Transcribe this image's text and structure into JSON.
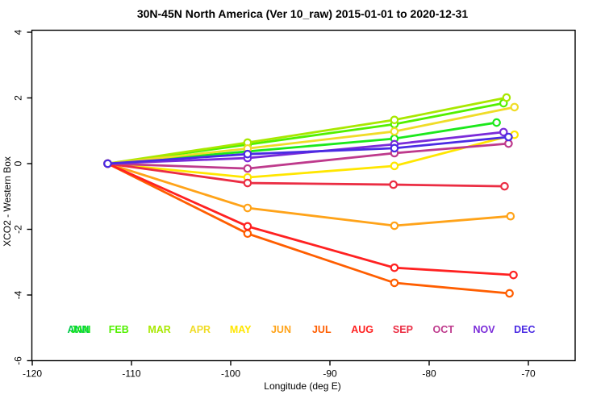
{
  "chart_data": {
    "type": "line",
    "title": "30N-45N North America (Ver 10_raw)   2015-01-01 to 2020-12-31",
    "xlabel": "Longitude (deg E)",
    "ylabel": "XCO2 - Western Box",
    "xlim": [
      -120.4,
      -65.3
    ],
    "ylim": [
      -6,
      4.1
    ],
    "x_ticks": [
      -120,
      -110,
      -100,
      -90,
      -80,
      -70
    ],
    "y_ticks": [
      4,
      2,
      0,
      -2,
      -4,
      -6
    ],
    "grid": false,
    "legend_position": "inside-bottom",
    "marker": "open-circle",
    "legend": [
      {
        "label": "ANN",
        "color": "#00c94a"
      },
      {
        "label": "JAN",
        "color": "#1ce81c"
      },
      {
        "label": "FEB",
        "color": "#52f000"
      },
      {
        "label": "MAR",
        "color": "#a8e800"
      },
      {
        "label": "APR",
        "color": "#f0dc28"
      },
      {
        "label": "MAY",
        "color": "#ffe600"
      },
      {
        "label": "JUN",
        "color": "#ffa319"
      },
      {
        "label": "JUL",
        "color": "#ff5e00"
      },
      {
        "label": "AUG",
        "color": "#ff2121"
      },
      {
        "label": "SEP",
        "color": "#eb2d43"
      },
      {
        "label": "OCT",
        "color": "#be3a8c"
      },
      {
        "label": "NOV",
        "color": "#7a2bd9"
      },
      {
        "label": "DEC",
        "color": "#4a2be3"
      }
    ],
    "series": [
      {
        "name": "JAN",
        "color": "#1ce81c",
        "x": [
          -112.4,
          -98.3,
          -83.5,
          -73.2
        ],
        "y": [
          0,
          0.37,
          0.76,
          1.25
        ]
      },
      {
        "name": "FEB",
        "color": "#52f000",
        "x": [
          -112.4,
          -98.3,
          -83.5,
          -72.5
        ],
        "y": [
          0,
          0.58,
          1.2,
          1.84
        ]
      },
      {
        "name": "MAR",
        "color": "#a8e800",
        "x": [
          -112.4,
          -98.3,
          -83.5,
          -72.2
        ],
        "y": [
          0,
          0.64,
          1.33,
          2.01
        ]
      },
      {
        "name": "APR",
        "color": "#f0dc28",
        "x": [
          -112.4,
          -98.3,
          -83.5,
          -71.4
        ],
        "y": [
          0,
          0.46,
          0.98,
          1.72
        ]
      },
      {
        "name": "MAY",
        "color": "#ffe600",
        "x": [
          -112.4,
          -98.3,
          -83.5,
          -71.4
        ],
        "y": [
          0,
          -0.42,
          -0.07,
          0.88
        ]
      },
      {
        "name": "JUN",
        "color": "#ffa319",
        "x": [
          -112.4,
          -98.3,
          -83.5,
          -71.8
        ],
        "y": [
          0,
          -1.35,
          -1.89,
          -1.6
        ]
      },
      {
        "name": "JUL",
        "color": "#ff5e00",
        "x": [
          -112.4,
          -98.3,
          -83.5,
          -71.9
        ],
        "y": [
          0,
          -2.13,
          -3.63,
          -3.95
        ]
      },
      {
        "name": "AUG",
        "color": "#ff2121",
        "x": [
          -112.4,
          -98.3,
          -83.5,
          -71.5
        ],
        "y": [
          0,
          -1.91,
          -3.17,
          -3.39
        ]
      },
      {
        "name": "SEP",
        "color": "#eb2d43",
        "x": [
          -112.4,
          -98.3,
          -83.6,
          -72.4
        ],
        "y": [
          0,
          -0.59,
          -0.64,
          -0.69
        ]
      },
      {
        "name": "OCT",
        "color": "#be3a8c",
        "x": [
          -112.4,
          -98.3,
          -83.5,
          -72.0
        ],
        "y": [
          0,
          -0.15,
          0.32,
          0.61
        ]
      },
      {
        "name": "NOV",
        "color": "#7a2bd9",
        "x": [
          -112.4,
          -98.3,
          -83.5,
          -72.5
        ],
        "y": [
          0,
          0.17,
          0.59,
          0.96
        ]
      },
      {
        "name": "DEC",
        "color": "#4a2be3",
        "x": [
          -112.4,
          -98.3,
          -83.5,
          -72.0
        ],
        "y": [
          0,
          0.29,
          0.47,
          0.81
        ]
      }
    ]
  }
}
